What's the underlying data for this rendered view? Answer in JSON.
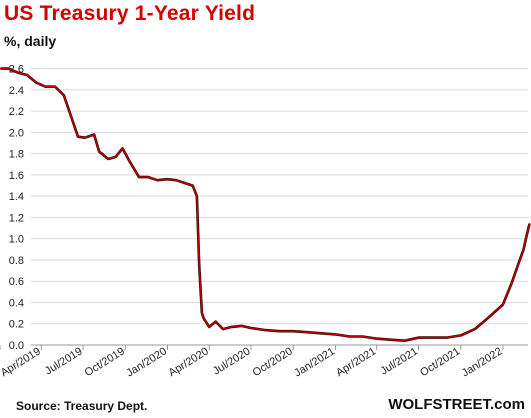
{
  "chart_data": {
    "type": "line",
    "title": "US Treasury 1-Year Yield",
    "subtitle": "%, daily",
    "xlabel": "",
    "ylabel": "",
    "ylim": [
      0.0,
      2.7
    ],
    "yticks": [
      "0.0",
      "0.2",
      "0.4",
      "0.6",
      "0.8",
      "1.0",
      "1.2",
      "1.4",
      "1.6",
      "1.8",
      "2.0",
      "2.2",
      "2.4",
      "2.6"
    ],
    "xticks": [
      "Jan/2019",
      "Apr/2019",
      "Jul/2019",
      "Oct/2019",
      "Jan/2020",
      "Apr/2020",
      "Jul/2020",
      "Oct/2020",
      "Jan/2021",
      "Apr/2021",
      "Jul/2021",
      "Oct/2021",
      "Jan/2022"
    ],
    "grid": true,
    "legend": "none",
    "line_color": "#c00000",
    "series": [
      {
        "x": [
          "2019-01-02",
          "2019-01-20",
          "2019-02-10",
          "2019-03-01",
          "2019-03-20",
          "2019-04-10",
          "2019-05-01",
          "2019-05-20",
          "2019-06-05",
          "2019-06-20",
          "2019-07-05",
          "2019-07-25",
          "2019-08-05",
          "2019-08-25",
          "2019-09-10",
          "2019-09-25",
          "2019-10-10",
          "2019-10-31",
          "2019-11-20",
          "2019-12-10",
          "2019-12-31",
          "2020-01-20",
          "2020-02-10",
          "2020-02-25",
          "2020-03-05",
          "2020-03-10",
          "2020-03-16",
          "2020-03-20",
          "2020-04-01",
          "2020-04-15",
          "2020-05-01",
          "2020-05-20",
          "2020-06-10",
          "2020-07-01",
          "2020-08-01",
          "2020-09-01",
          "2020-10-01",
          "2020-11-01",
          "2020-12-01",
          "2021-01-01",
          "2021-02-01",
          "2021-03-01",
          "2021-04-01",
          "2021-05-01",
          "2021-06-01",
          "2021-07-01",
          "2021-08-01",
          "2021-09-01",
          "2021-10-01",
          "2021-11-01",
          "2021-12-01",
          "2022-01-01",
          "2022-01-20",
          "2022-02-05",
          "2022-02-15",
          "2022-02-20",
          "2022-02-28"
        ],
        "values": [
          2.6,
          2.6,
          2.56,
          2.54,
          2.47,
          2.43,
          2.43,
          2.35,
          2.15,
          1.96,
          1.95,
          1.98,
          1.82,
          1.75,
          1.77,
          1.85,
          1.73,
          1.58,
          1.58,
          1.55,
          1.56,
          1.55,
          1.52,
          1.5,
          1.4,
          0.75,
          0.3,
          0.25,
          0.17,
          0.22,
          0.15,
          0.17,
          0.18,
          0.16,
          0.14,
          0.13,
          0.13,
          0.12,
          0.11,
          0.1,
          0.08,
          0.08,
          0.06,
          0.05,
          0.04,
          0.07,
          0.07,
          0.07,
          0.09,
          0.15,
          0.26,
          0.38,
          0.58,
          0.78,
          0.9,
          1.0,
          1.14
        ]
      }
    ]
  },
  "footer": {
    "source": "Source: Treasury Dept.",
    "brand": "WOLFSTREET.com"
  }
}
